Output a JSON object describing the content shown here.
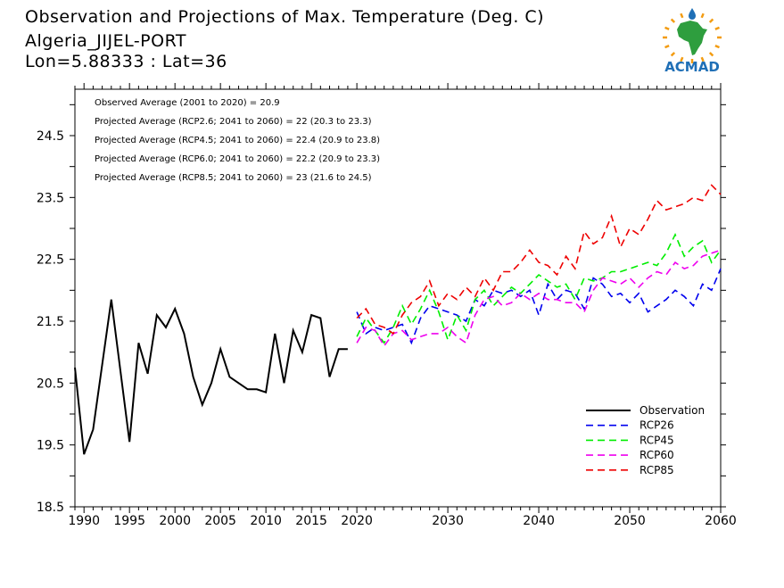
{
  "header": {
    "title": "Observation and Projections of Max. Temperature (Deg. C)",
    "station": "Algeria_JIJEL-PORT",
    "coords": "Lon=5.88333 : Lat=36",
    "logo_text": "ACMAD"
  },
  "colors": {
    "observation": "#000000",
    "rcp26": "#0000ee",
    "rcp45": "#00ee00",
    "rcp60": "#ee00ee",
    "rcp85": "#ee0000",
    "logo_blue": "#1f6fb6",
    "logo_orange": "#f39c12",
    "logo_green": "#2e9e3e"
  },
  "chart_data": {
    "type": "line",
    "title": "Observation and Projections of Max. Temperature (Deg. C)",
    "xlim": [
      1989,
      2060
    ],
    "ylim": [
      18.5,
      25.25
    ],
    "x_ticks": [
      {
        "value": 1990,
        "label": "1990"
      },
      {
        "value": 1995,
        "label": "1995"
      },
      {
        "value": 2000,
        "label": "2000"
      },
      {
        "value": 2005,
        "label": "2005"
      },
      {
        "value": 2010,
        "label": "2010"
      },
      {
        "value": 2015,
        "label": "2015"
      },
      {
        "value": 2020,
        "label": "2020"
      },
      {
        "value": 2030,
        "label": "2030"
      },
      {
        "value": 2040,
        "label": "2040"
      },
      {
        "value": 2050,
        "label": "2050"
      },
      {
        "value": 2060,
        "label": "2060"
      }
    ],
    "y_ticks": [
      {
        "value": 18.5,
        "label": "18.5"
      },
      {
        "value": 19.5,
        "label": "19.5"
      },
      {
        "value": 20.5,
        "label": "20.5"
      },
      {
        "value": 21.5,
        "label": "21.5"
      },
      {
        "value": 22.5,
        "label": "22.5"
      },
      {
        "value": 23.5,
        "label": "23.5"
      },
      {
        "value": 24.5,
        "label": "24.5"
      }
    ],
    "annotations": [
      "Observed Average (2001 to 2020) = 20.9",
      "Projected Average (RCP2.6; 2041 to 2060) = 22 (20.3 to 23.3)",
      "Projected Average (RCP4.5; 2041 to 2060) = 22.4 (20.9 to 23.8)",
      "Projected Average (RCP6.0; 2041 to 2060) = 22.2 (20.9 to 23.3)",
      "Projected Average (RCP8.5; 2041 to 2060) = 23 (21.6 to 24.5)"
    ],
    "legend_position": "bottom-right",
    "series": [
      {
        "name": "Observation",
        "key": "obs",
        "dashed": false,
        "x": [
          1989,
          1990,
          1991,
          1992,
          1993,
          1994,
          1995,
          1996,
          1997,
          1998,
          1999,
          2000,
          2001,
          2002,
          2003,
          2004,
          2005,
          2006,
          2007,
          2008,
          2009,
          2010,
          2011,
          2012,
          2013,
          2014,
          2015,
          2016,
          2017,
          2018,
          2019
        ],
        "y": [
          20.75,
          19.35,
          19.75,
          20.8,
          21.85,
          20.7,
          19.55,
          21.15,
          20.65,
          21.6,
          21.4,
          21.7,
          21.3,
          20.6,
          20.15,
          20.5,
          21.05,
          20.6,
          20.5,
          20.4,
          20.4,
          20.35,
          21.3,
          20.5,
          21.35,
          21.0,
          21.6,
          21.55,
          20.6,
          21.05,
          21.05
        ]
      },
      {
        "name": "RCP26",
        "key": "rcp26",
        "dashed": true,
        "x": [
          2020,
          2021,
          2022,
          2023,
          2024,
          2025,
          2026,
          2027,
          2028,
          2029,
          2030,
          2031,
          2032,
          2033,
          2034,
          2035,
          2036,
          2037,
          2038,
          2039,
          2040,
          2041,
          2042,
          2043,
          2044,
          2045,
          2046,
          2047,
          2048,
          2049,
          2050,
          2051,
          2052,
          2053,
          2054,
          2055,
          2056,
          2057,
          2058,
          2059,
          2060
        ],
        "y": [
          21.65,
          21.3,
          21.4,
          21.35,
          21.4,
          21.45,
          21.15,
          21.55,
          21.75,
          21.7,
          21.65,
          21.6,
          21.5,
          21.85,
          21.75,
          22.0,
          21.95,
          22.0,
          21.9,
          22.0,
          21.6,
          22.1,
          21.85,
          22.0,
          21.95,
          21.7,
          22.2,
          22.1,
          21.9,
          21.95,
          21.8,
          21.95,
          21.65,
          21.75,
          21.85,
          22.0,
          21.9,
          21.75,
          22.1,
          22.0,
          22.35
        ]
      },
      {
        "name": "RCP45",
        "key": "rcp45",
        "dashed": true,
        "x": [
          2020,
          2021,
          2022,
          2023,
          2024,
          2025,
          2026,
          2027,
          2028,
          2029,
          2030,
          2031,
          2032,
          2033,
          2034,
          2035,
          2036,
          2037,
          2038,
          2039,
          2040,
          2041,
          2042,
          2043,
          2044,
          2045,
          2046,
          2047,
          2048,
          2049,
          2050,
          2051,
          2052,
          2053,
          2054,
          2055,
          2056,
          2057,
          2058,
          2059,
          2060
        ],
        "y": [
          21.25,
          21.55,
          21.35,
          21.15,
          21.4,
          21.75,
          21.45,
          21.7,
          22.0,
          21.65,
          21.2,
          21.6,
          21.35,
          21.85,
          22.0,
          21.75,
          21.9,
          22.05,
          21.95,
          22.1,
          22.25,
          22.15,
          22.05,
          22.1,
          21.85,
          22.2,
          22.15,
          22.2,
          22.3,
          22.3,
          22.35,
          22.4,
          22.45,
          22.4,
          22.6,
          22.9,
          22.55,
          22.7,
          22.8,
          22.45,
          22.65
        ]
      },
      {
        "name": "RCP60",
        "key": "rcp60",
        "dashed": true,
        "x": [
          2020,
          2021,
          2022,
          2023,
          2024,
          2025,
          2026,
          2027,
          2028,
          2029,
          2030,
          2031,
          2032,
          2033,
          2034,
          2035,
          2036,
          2037,
          2038,
          2039,
          2040,
          2041,
          2042,
          2043,
          2044,
          2045,
          2046,
          2047,
          2048,
          2049,
          2050,
          2051,
          2052,
          2053,
          2054,
          2055,
          2056,
          2057,
          2058,
          2059,
          2060
        ],
        "y": [
          21.15,
          21.4,
          21.35,
          21.1,
          21.3,
          21.35,
          21.2,
          21.25,
          21.3,
          21.3,
          21.4,
          21.25,
          21.15,
          21.6,
          21.85,
          21.9,
          21.75,
          21.8,
          21.95,
          21.85,
          21.95,
          21.85,
          21.85,
          21.8,
          21.8,
          21.65,
          22.0,
          22.2,
          22.15,
          22.1,
          22.2,
          22.05,
          22.2,
          22.3,
          22.25,
          22.45,
          22.35,
          22.4,
          22.55,
          22.6,
          22.65
        ]
      },
      {
        "name": "RCP85",
        "key": "rcp85",
        "dashed": true,
        "x": [
          2020,
          2021,
          2022,
          2023,
          2024,
          2025,
          2026,
          2027,
          2028,
          2029,
          2030,
          2031,
          2032,
          2033,
          2034,
          2035,
          2036,
          2037,
          2038,
          2039,
          2040,
          2041,
          2042,
          2043,
          2044,
          2045,
          2046,
          2047,
          2048,
          2049,
          2050,
          2051,
          2052,
          2053,
          2054,
          2055,
          2056,
          2057,
          2058,
          2059,
          2060
        ],
        "y": [
          21.55,
          21.7,
          21.45,
          21.4,
          21.3,
          21.6,
          21.8,
          21.9,
          22.15,
          21.75,
          21.95,
          21.85,
          22.05,
          21.9,
          22.2,
          22.0,
          22.3,
          22.3,
          22.45,
          22.65,
          22.45,
          22.4,
          22.25,
          22.55,
          22.35,
          22.95,
          22.75,
          22.85,
          23.2,
          22.7,
          23.0,
          22.9,
          23.15,
          23.45,
          23.3,
          23.35,
          23.4,
          23.5,
          23.45,
          23.7,
          23.55
        ]
      }
    ]
  }
}
